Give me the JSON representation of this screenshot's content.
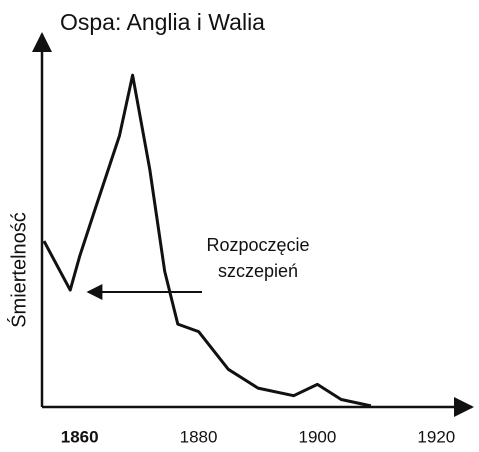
{
  "chart_data": {
    "type": "line",
    "title": "Ospa: Anglia i Walia",
    "y_label": "Śmiertelność",
    "annotation": [
      "Rozpoczęcie",
      "szczepień"
    ],
    "x": [
      1854,
      1858.4,
      1860,
      1862.5,
      1866.7,
      1868.9,
      1871.8,
      1874.3,
      1876.5,
      1880,
      1885,
      1890,
      1896,
      1900,
      1904,
      1909
    ],
    "series": [
      {
        "name": "Śmiertelność",
        "color": "#111111",
        "values": [
          44,
          31,
          40,
          52,
          72,
          88,
          63,
          36,
          22,
          20,
          10,
          5,
          3,
          6,
          2,
          0.3
        ]
      }
    ],
    "xlim": [
      1854,
      1926
    ],
    "ylim": [
      0,
      100
    ],
    "xticks": [
      1860,
      1880,
      1900,
      1920
    ]
  }
}
